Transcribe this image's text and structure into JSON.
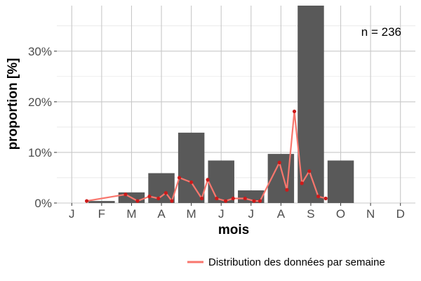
{
  "chart_data": {
    "type": "bar",
    "xlabel": "mois",
    "ylabel": "proportion [%]",
    "annotation": "n = 236",
    "categories": [
      "J",
      "F",
      "M",
      "A",
      "M",
      "J",
      "J",
      "A",
      "S",
      "O",
      "N",
      "D"
    ],
    "ylim": [
      0,
      39
    ],
    "y_ticks": [
      0,
      10,
      20,
      30
    ],
    "y_tick_labels": [
      "0%",
      "10%",
      "20%",
      "30%"
    ],
    "grid": true,
    "legend_position": "bottom-right",
    "bar_color": "#595959",
    "series": [
      {
        "type": "bar",
        "values": [
          0,
          0.4,
          2.1,
          5.9,
          13.9,
          8.4,
          2.5,
          9.7,
          39,
          8.4,
          0,
          0
        ]
      },
      {
        "name": "Distribution des données par semaine",
        "type": "line",
        "color": "#f8766d",
        "marker_color": "#cc1a1a",
        "x": [
          1.5,
          2.8,
          3.2,
          3.6,
          3.9,
          4.15,
          4.35,
          4.6,
          5.0,
          5.35,
          5.55,
          5.85,
          6.15,
          6.4,
          6.8,
          7.1,
          7.3,
          7.95,
          8.2,
          8.45,
          8.7,
          8.95,
          9.25,
          9.5
        ],
        "y": [
          0.4,
          1.7,
          0.4,
          1.3,
          0.9,
          2.0,
          0.4,
          5.0,
          4.1,
          0.9,
          4.6,
          0.9,
          0.4,
          0.9,
          0.9,
          0.4,
          0.4,
          8.0,
          2.6,
          18.1,
          3.9,
          6.3,
          1.3,
          0.9
        ]
      }
    ]
  }
}
